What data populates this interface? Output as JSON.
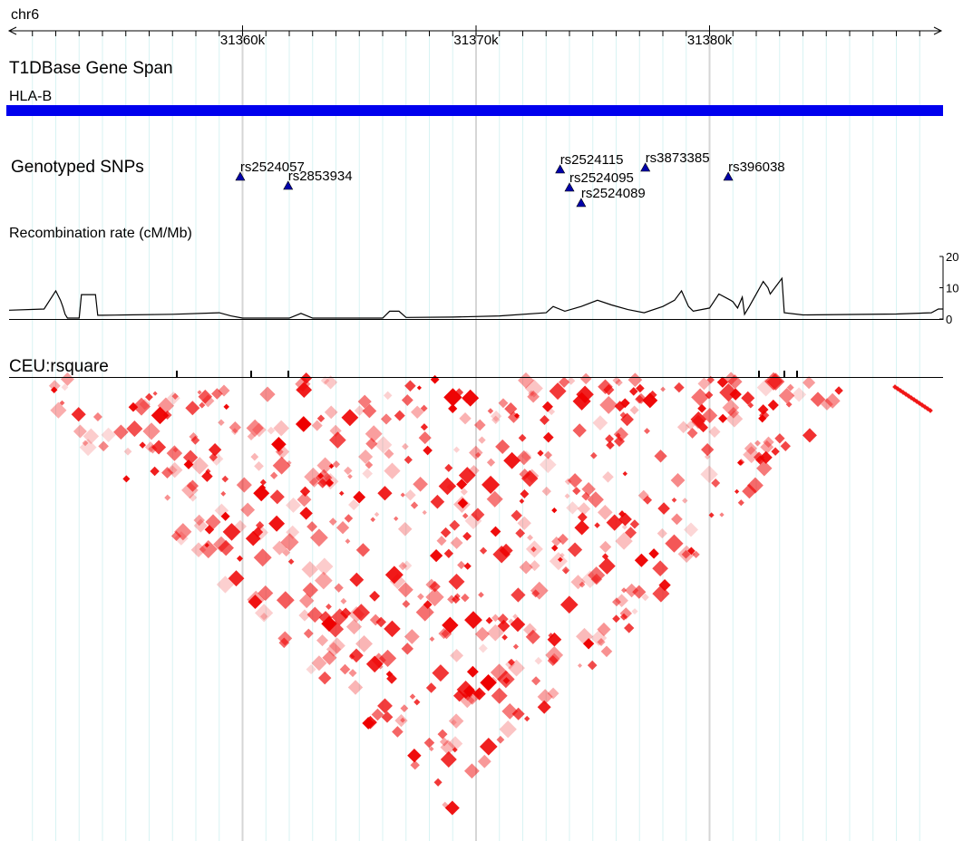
{
  "chromosome": "chr6",
  "axis": {
    "unit": "bp",
    "range": [
      31350000,
      31390000
    ],
    "tick_labels": [
      {
        "label": "31360k",
        "pos": 31360000
      },
      {
        "label": "31370k",
        "pos": 31370000
      },
      {
        "label": "31380k",
        "pos": 31380000
      }
    ]
  },
  "tracks": {
    "gene_span": {
      "title": "T1DBase Gene Span",
      "genes": [
        {
          "name": "HLA-B",
          "start": 31350000,
          "end": 31390000,
          "color": "#0000ee"
        }
      ]
    },
    "snps": {
      "title": "Genotyped SNPs",
      "color": "#0000aa",
      "items": [
        {
          "id": "rs2524057",
          "pos": 31359900,
          "row": 1
        },
        {
          "id": "rs2853934",
          "pos": 31361950,
          "row": 2
        },
        {
          "id": "rs2524115",
          "pos": 31373600,
          "row": 0
        },
        {
          "id": "rs2524095",
          "pos": 31374000,
          "row": 3
        },
        {
          "id": "rs2524089",
          "pos": 31374500,
          "row": 4
        },
        {
          "id": "rs3873385",
          "pos": 31377250,
          "row": -1
        },
        {
          "id": "rs396038",
          "pos": 31380800,
          "row": 1
        }
      ]
    },
    "recombination": {
      "title": "Recombination rate (cM/Mb)",
      "y_ticks": [
        "20",
        "10",
        "0"
      ],
      "ylim": [
        0,
        20
      ]
    },
    "ld": {
      "title": "CEU:rsquare",
      "color": "#ee0000"
    }
  },
  "chart_data": {
    "type": "line",
    "title": "Recombination rate (cM/Mb)",
    "xlabel": "",
    "ylabel": "",
    "xlim": [
      31350000,
      31390000
    ],
    "ylim": [
      0,
      20
    ],
    "series": [
      {
        "x": [
          31350000,
          31351500,
          31352000,
          31352100,
          31352200,
          31352300,
          31352400,
          31352500,
          31353000,
          31353100,
          31353700,
          31353800,
          31354000,
          31355000,
          31357000,
          31359000,
          31359500,
          31360000,
          31362000,
          31362500,
          31363000,
          31364000,
          31366000,
          31366300,
          31366700,
          31367000,
          31369000,
          31371000,
          31373000,
          31373300,
          31373800,
          31374500,
          31375200,
          31375800,
          31376500,
          31377200,
          31378000,
          31378500,
          31378800,
          31379100,
          31379300,
          31380000,
          31380400,
          31380900,
          31381000,
          31381200,
          31381400,
          31381500,
          31381700,
          31382000,
          31382300,
          31382500,
          31382600,
          31383100,
          31383200,
          31384000,
          31388000,
          31389500,
          31389800,
          31390000
        ],
        "y": [
          2.8,
          3.2,
          9.0,
          7.5,
          6.0,
          4.0,
          1.5,
          0.3,
          0.3,
          7.8,
          7.8,
          1.2,
          1.2,
          1.3,
          1.5,
          2.0,
          1.0,
          0.3,
          0.3,
          1.8,
          0.3,
          0.3,
          0.3,
          2.5,
          2.5,
          0.5,
          0.6,
          1.0,
          2.0,
          4.0,
          2.5,
          4.0,
          6.0,
          4.5,
          3.0,
          2.0,
          4.0,
          6.0,
          9.0,
          4.0,
          2.5,
          3.5,
          8.0,
          6.0,
          5.5,
          3.5,
          7.0,
          1.5,
          4.0,
          8.0,
          12.0,
          10.0,
          8.0,
          13.0,
          2.0,
          1.3,
          1.6,
          2.0,
          3.2,
          3.2
        ]
      }
    ]
  }
}
